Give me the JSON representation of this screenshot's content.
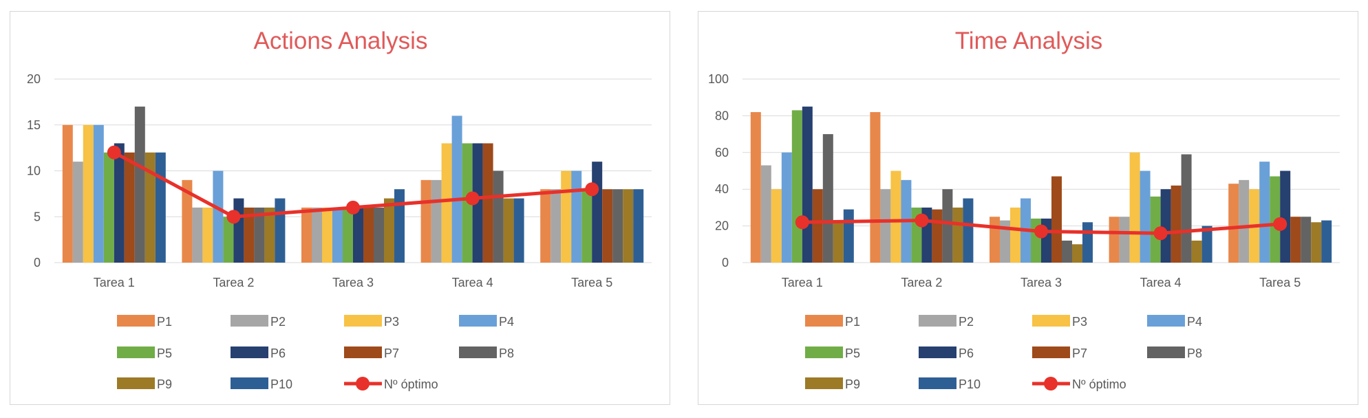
{
  "colors": {
    "title": "#e05a5a",
    "axis_text": "#595959",
    "grid": "#d9d9d9",
    "optimum_line": "#e8312a",
    "series": [
      "#e8874a",
      "#a6a6a6",
      "#f7c245",
      "#6aa0d8",
      "#70ad47",
      "#26406f",
      "#9e4a1b",
      "#636363",
      "#9c7a26",
      "#2e5f94"
    ]
  },
  "chart_data": [
    {
      "type": "bar",
      "title": "Actions Analysis",
      "xlabel": "",
      "ylabel": "",
      "categories": [
        "Tarea 1",
        "Tarea 2",
        "Tarea 3",
        "Tarea 4",
        "Tarea 5"
      ],
      "ylim": [
        0,
        20
      ],
      "yticks": [
        "0",
        "5",
        "10",
        "15",
        "20"
      ],
      "grid": true,
      "legend_position": "bottom",
      "series": [
        {
          "name": "P1",
          "values": [
            15,
            9,
            6,
            9,
            8
          ]
        },
        {
          "name": "P2",
          "values": [
            11,
            6,
            6,
            9,
            8
          ]
        },
        {
          "name": "P3",
          "values": [
            15,
            6,
            6,
            13,
            10
          ]
        },
        {
          "name": "P4",
          "values": [
            15,
            10,
            6,
            16,
            10
          ]
        },
        {
          "name": "P5",
          "values": [
            12,
            5,
            6,
            13,
            8
          ]
        },
        {
          "name": "P6",
          "values": [
            13,
            7,
            6,
            13,
            11
          ]
        },
        {
          "name": "P7",
          "values": [
            12,
            6,
            6,
            13,
            8
          ]
        },
        {
          "name": "P8",
          "values": [
            17,
            6,
            6,
            10,
            8
          ]
        },
        {
          "name": "P9",
          "values": [
            12,
            6,
            7,
            7,
            8
          ]
        },
        {
          "name": "P10",
          "values": [
            12,
            7,
            8,
            7,
            8
          ]
        }
      ],
      "line": {
        "name": "Nº óptimo",
        "values": [
          12,
          5,
          6,
          7,
          8
        ]
      }
    },
    {
      "type": "bar",
      "title": "Time Analysis",
      "xlabel": "",
      "ylabel": "",
      "categories": [
        "Tarea 1",
        "Tarea 2",
        "Tarea 3",
        "Tarea 4",
        "Tarea 5"
      ],
      "ylim": [
        0,
        100
      ],
      "yticks": [
        "0",
        "20",
        "40",
        "60",
        "80",
        "100"
      ],
      "grid": true,
      "legend_position": "bottom",
      "series": [
        {
          "name": "P1",
          "values": [
            82,
            82,
            25,
            25,
            43
          ]
        },
        {
          "name": "P2",
          "values": [
            53,
            40,
            23,
            25,
            45
          ]
        },
        {
          "name": "P3",
          "values": [
            40,
            50,
            30,
            60,
            40
          ]
        },
        {
          "name": "P4",
          "values": [
            60,
            45,
            35,
            50,
            55
          ]
        },
        {
          "name": "P5",
          "values": [
            83,
            30,
            24,
            36,
            47
          ]
        },
        {
          "name": "P6",
          "values": [
            85,
            30,
            24,
            40,
            50
          ]
        },
        {
          "name": "P7",
          "values": [
            40,
            29,
            47,
            42,
            25
          ]
        },
        {
          "name": "P8",
          "values": [
            70,
            40,
            12,
            59,
            25
          ]
        },
        {
          "name": "P9",
          "values": [
            22,
            30,
            10,
            12,
            22
          ]
        },
        {
          "name": "P10",
          "values": [
            29,
            35,
            22,
            20,
            23
          ]
        }
      ],
      "line": {
        "name": "Nº óptimo",
        "values": [
          22,
          23,
          17,
          16,
          21
        ]
      }
    }
  ]
}
